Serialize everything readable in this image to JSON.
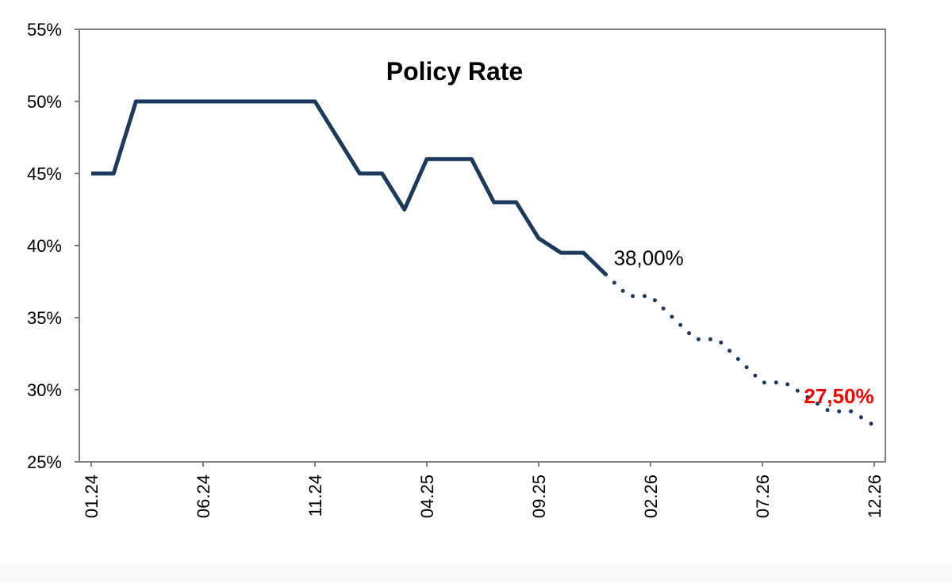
{
  "chart_data": {
    "type": "line",
    "title": "Policy Rate",
    "xlabel": "",
    "ylabel": "",
    "ylim": [
      25,
      55
    ],
    "y_ticks": [
      "25%",
      "30%",
      "35%",
      "40%",
      "45%",
      "50%",
      "55%"
    ],
    "y_tick_values": [
      25,
      30,
      35,
      40,
      45,
      50,
      55
    ],
    "x_tick_labels": [
      "01.24",
      "06.24",
      "11.24",
      "04.25",
      "09.25",
      "02.26",
      "07.26",
      "12.26"
    ],
    "x": [
      "01.24",
      "02.24",
      "03.24",
      "04.24",
      "05.24",
      "06.24",
      "07.24",
      "08.24",
      "09.24",
      "10.24",
      "11.24",
      "12.24",
      "01.25",
      "02.25",
      "03.25",
      "04.25",
      "05.25",
      "06.25",
      "07.25",
      "08.25",
      "09.25",
      "10.25",
      "11.25",
      "12.25",
      "01.26",
      "02.26",
      "03.26",
      "04.26",
      "05.26",
      "06.26",
      "07.26",
      "08.26",
      "09.26",
      "10.26",
      "11.26",
      "12.26"
    ],
    "grid": false,
    "series": [
      {
        "style": "solid",
        "color": "#1b3a5e",
        "x": [
          "01.24",
          "02.24",
          "03.24",
          "04.24",
          "05.24",
          "06.24",
          "07.24",
          "08.24",
          "09.24",
          "10.24",
          "11.24",
          "12.24",
          "01.25",
          "02.25",
          "03.25",
          "04.25",
          "05.25",
          "06.25",
          "07.25",
          "08.25",
          "09.25",
          "10.25",
          "11.25",
          "12.25"
        ],
        "values": [
          45,
          45,
          50,
          50,
          50,
          50,
          50,
          50,
          50,
          50,
          50,
          47.5,
          45,
          45,
          42.5,
          46,
          46,
          46,
          43,
          43,
          40.5,
          39.5,
          39.5,
          38
        ]
      },
      {
        "style": "dotted",
        "color": "#1b3a5e",
        "x": [
          "12.25",
          "01.26",
          "02.26",
          "03.26",
          "04.26",
          "05.26",
          "06.26",
          "07.26",
          "08.26",
          "09.26",
          "10.26",
          "11.26",
          "12.26"
        ],
        "values": [
          38,
          36.5,
          36.5,
          35,
          33.5,
          33.5,
          32,
          30.5,
          30.5,
          29.5,
          28.5,
          28.5,
          27.5
        ]
      }
    ],
    "annotations": [
      {
        "text": "38,00%",
        "x": "12.25",
        "y": 38,
        "color": "#000000"
      },
      {
        "text": "27,50%",
        "x": "09.26",
        "y": 29.5,
        "color": "#ff0000"
      }
    ]
  }
}
